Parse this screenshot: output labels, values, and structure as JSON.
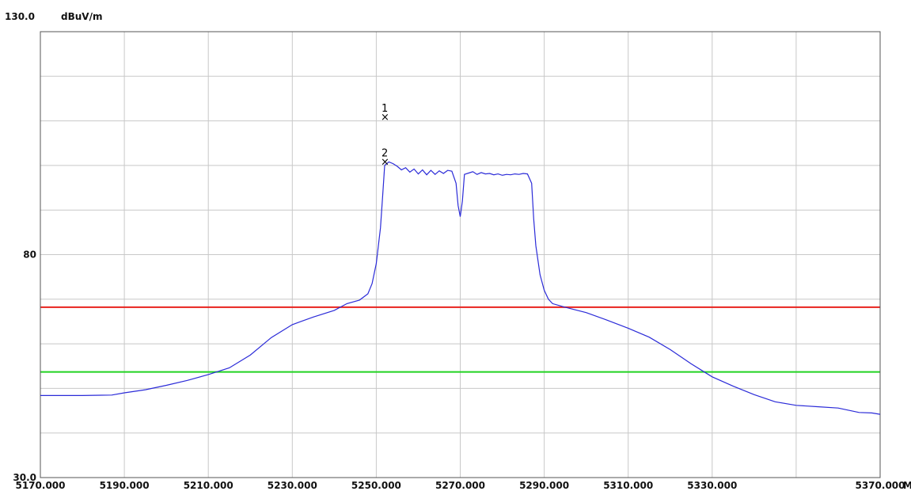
{
  "header": {
    "ymax_label": "130.0",
    "unit_label": "dBuV/m"
  },
  "chart_data": {
    "type": "line",
    "xlim": [
      5170,
      5370
    ],
    "ylim": [
      30,
      130
    ],
    "x_tick_labels": [
      {
        "value": 5170,
        "text": "5170.000"
      },
      {
        "value": 5190,
        "text": "5190.000"
      },
      {
        "value": 5210,
        "text": "5210.000"
      },
      {
        "value": 5230,
        "text": "5230.000"
      },
      {
        "value": 5250,
        "text": "5250.000"
      },
      {
        "value": 5270,
        "text": "5270.000"
      },
      {
        "value": 5290,
        "text": "5290.000"
      },
      {
        "value": 5310,
        "text": "5310.000"
      },
      {
        "value": 5330,
        "text": "5330.000"
      },
      {
        "value": 5370,
        "text": "5370.000"
      }
    ],
    "x_unit": "MHz",
    "y_tick_labels": [
      {
        "value": 130,
        "text": "130.0"
      },
      {
        "value": 80,
        "text": "80"
      },
      {
        "value": 30,
        "text": "30.0"
      }
    ],
    "grid": true,
    "grid_x_values": [
      5190,
      5210,
      5230,
      5250,
      5270,
      5290,
      5310,
      5330,
      5350
    ],
    "grid_y_values": [
      40,
      50,
      60,
      70,
      80,
      90,
      100,
      110,
      120
    ],
    "limit_lines": [
      {
        "y": 68.2,
        "color": "#e8231e"
      },
      {
        "y": 53.7,
        "color": "#22d322"
      }
    ],
    "series": [
      {
        "color": "#2b2bd8",
        "points": [
          [
            5170,
            48.4
          ],
          [
            5180,
            48.4
          ],
          [
            5187,
            48.5
          ],
          [
            5190,
            49.0
          ],
          [
            5195,
            49.7
          ],
          [
            5200,
            50.7
          ],
          [
            5205,
            51.8
          ],
          [
            5210,
            53.1
          ],
          [
            5215,
            54.6
          ],
          [
            5220,
            57.5
          ],
          [
            5225,
            61.4
          ],
          [
            5230,
            64.3
          ],
          [
            5235,
            66.0
          ],
          [
            5240,
            67.5
          ],
          [
            5243,
            69.0
          ],
          [
            5246,
            69.8
          ],
          [
            5248,
            71.2
          ],
          [
            5249,
            73.5
          ],
          [
            5250,
            78.0
          ],
          [
            5251,
            86.0
          ],
          [
            5251.5,
            93.0
          ],
          [
            5252,
            100.0
          ],
          [
            5253,
            100.8
          ],
          [
            5254,
            100.4
          ],
          [
            5255,
            99.8
          ],
          [
            5256,
            99.0
          ],
          [
            5257,
            99.5
          ],
          [
            5258,
            98.5
          ],
          [
            5259,
            99.2
          ],
          [
            5260,
            98.1
          ],
          [
            5261,
            99.0
          ],
          [
            5262,
            97.9
          ],
          [
            5263,
            98.9
          ],
          [
            5264,
            98.0
          ],
          [
            5265,
            98.8
          ],
          [
            5266,
            98.2
          ],
          [
            5267,
            98.9
          ],
          [
            5268,
            98.7
          ],
          [
            5269,
            96.0
          ],
          [
            5269.5,
            91.0
          ],
          [
            5270,
            88.5
          ],
          [
            5270.5,
            92.0
          ],
          [
            5271,
            98.0
          ],
          [
            5272,
            98.3
          ],
          [
            5273,
            98.6
          ],
          [
            5274,
            98.0
          ],
          [
            5275,
            98.4
          ],
          [
            5276,
            98.1
          ],
          [
            5277,
            98.2
          ],
          [
            5278,
            97.9
          ],
          [
            5279,
            98.1
          ],
          [
            5280,
            97.8
          ],
          [
            5281,
            98.0
          ],
          [
            5282,
            97.9
          ],
          [
            5283,
            98.1
          ],
          [
            5284,
            98.0
          ],
          [
            5285,
            98.2
          ],
          [
            5286,
            98.1
          ],
          [
            5287,
            96.0
          ],
          [
            5287.5,
            88.0
          ],
          [
            5288,
            82.0
          ],
          [
            5289,
            75.5
          ],
          [
            5290,
            72.0
          ],
          [
            5291,
            70.0
          ],
          [
            5292,
            69.0
          ],
          [
            5295,
            68.2
          ],
          [
            5300,
            67.0
          ],
          [
            5305,
            65.3
          ],
          [
            5310,
            63.5
          ],
          [
            5315,
            61.5
          ],
          [
            5320,
            58.7
          ],
          [
            5325,
            55.5
          ],
          [
            5330,
            52.6
          ],
          [
            5335,
            50.5
          ],
          [
            5340,
            48.6
          ],
          [
            5345,
            47.0
          ],
          [
            5350,
            46.2
          ],
          [
            5355,
            45.9
          ],
          [
            5360,
            45.6
          ],
          [
            5365,
            44.6
          ],
          [
            5368,
            44.5
          ],
          [
            5370,
            44.2
          ]
        ]
      }
    ],
    "markers": [
      {
        "label": "1",
        "x": 5252,
        "y": 111.0
      },
      {
        "label": "2",
        "x": 5252,
        "y": 101.0
      }
    ]
  }
}
